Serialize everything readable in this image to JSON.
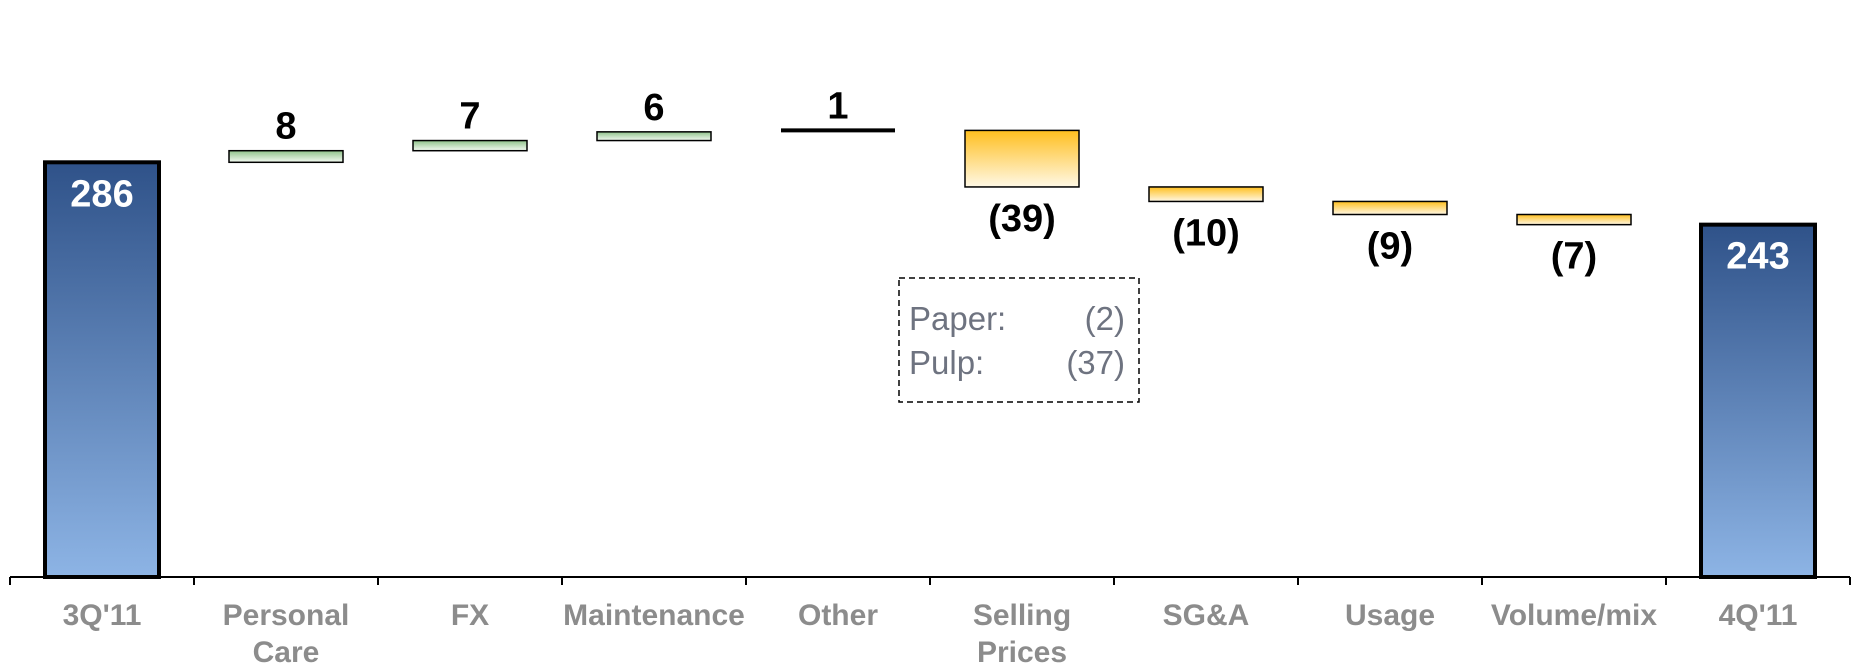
{
  "chart_data": {
    "type": "bar",
    "subtype": "waterfall",
    "categories": [
      "3Q'11",
      "Personal Care",
      "FX",
      "Maintenance",
      "Other",
      "Selling Prices",
      "SG&A",
      "Usage",
      "Volume/mix",
      "4Q'11"
    ],
    "category_lines": [
      [
        "3Q'11"
      ],
      [
        "Personal",
        "Care"
      ],
      [
        "FX"
      ],
      [
        "Maintenance"
      ],
      [
        "Other"
      ],
      [
        "Selling",
        "Prices"
      ],
      [
        "SG&A"
      ],
      [
        "Usage"
      ],
      [
        "Volume/mix"
      ],
      [
        "4Q'11"
      ]
    ],
    "values": [
      286,
      8,
      7,
      6,
      1,
      -39,
      -10,
      -9,
      -7,
      243
    ],
    "kinds": [
      "total",
      "increase",
      "increase",
      "increase",
      "increase",
      "decrease",
      "decrease",
      "decrease",
      "decrease",
      "total"
    ],
    "data_labels": [
      "286",
      "8",
      "7",
      "6",
      "1",
      "(39)",
      "(10)",
      "(9)",
      "(7)",
      "243"
    ],
    "ylim": [
      0,
      360
    ],
    "grid": false,
    "legend": "none",
    "title": "",
    "xlabel": "",
    "ylabel": "",
    "colors": {
      "total_top": "#2f5289",
      "total_bottom": "#8db4e5",
      "increase_top": "#8fc28a",
      "increase_bottom": "#f4faf2",
      "decrease_top": "#ffbf1f",
      "decrease_bottom": "#fff8e6",
      "other_line": "#000000",
      "category_text": "#8c8c8c",
      "value_text": "#000000",
      "total_value_text": "#ffffff",
      "callout_text": "#6e7380"
    },
    "annotation": {
      "attached_to": "Selling Prices",
      "rows": [
        {
          "label": "Paper:",
          "value": "(2)"
        },
        {
          "label": "Pulp:",
          "value": "(37)"
        }
      ]
    }
  }
}
